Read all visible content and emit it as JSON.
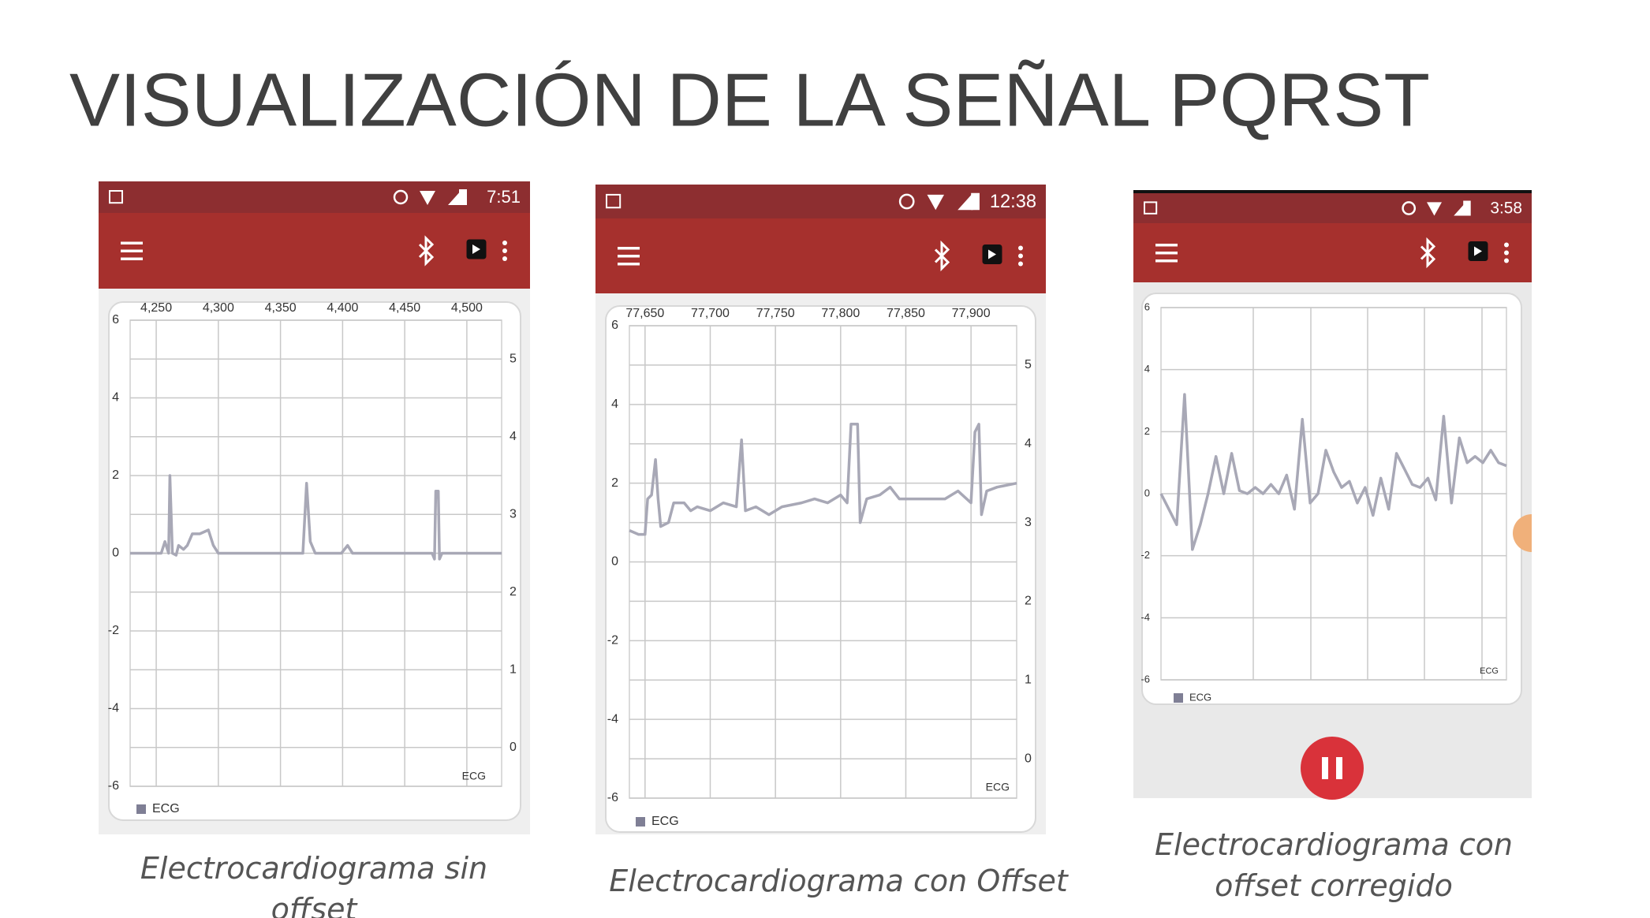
{
  "title": "VISUALIZACIÓN DE LA SEÑAL PQRST",
  "panels": [
    {
      "status_time": "7:51",
      "chart": {
        "type": "line",
        "x": [
          4229,
          4254,
          4257,
          4260,
          4261,
          4263,
          4266,
          4268,
          4272,
          4275,
          4279,
          4285,
          4292,
          4296,
          4300,
          4368,
          4371,
          4374,
          4378,
          4399,
          4404,
          4408,
          4472,
          4474,
          4475,
          4477,
          4478,
          4480,
          4528
        ],
        "series": [
          {
            "name": "ECG",
            "color": "#a8a8b6",
            "values": [
              0,
              0,
              0.3,
              0,
              2.0,
              0,
              -0.05,
              0.2,
              0.1,
              0.2,
              0.5,
              0.5,
              0.6,
              0.2,
              0,
              0,
              1.8,
              0.3,
              0,
              0,
              0.2,
              0,
              0,
              -0.15,
              1.6,
              1.6,
              -0.15,
              0,
              0
            ]
          }
        ],
        "xlim": [
          4229,
          4528
        ],
        "xticks": [
          {
            "value": 4250,
            "label": "4,250"
          },
          {
            "value": 4300,
            "label": "4,300"
          },
          {
            "value": 4350,
            "label": "4,350"
          },
          {
            "value": 4400,
            "label": "4,400"
          },
          {
            "value": 4450,
            "label": "4,450"
          },
          {
            "value": 4500,
            "label": "4,500"
          }
        ],
        "ylim": [
          -6,
          6
        ],
        "yticks": [
          -6,
          -4,
          -2,
          0,
          2,
          4,
          6
        ],
        "y2lim": [
          -0.5,
          5.5
        ],
        "y2ticks": [
          0,
          1,
          2,
          3,
          4,
          5
        ],
        "grid": true
      },
      "caption": "Electrocardiograma sin offset"
    },
    {
      "status_time": "12:38",
      "chart": {
        "type": "line",
        "x": [
          77638,
          77645,
          77650,
          77652,
          77655,
          77658,
          77660,
          77662,
          77668,
          77672,
          77680,
          77685,
          77690,
          77700,
          77710,
          77720,
          77724,
          77727,
          77735,
          77745,
          77755,
          77770,
          77780,
          77790,
          77800,
          77805,
          77808,
          77813,
          77815,
          77820,
          77830,
          77838,
          77845,
          77860,
          77880,
          77890,
          77900,
          77903,
          77906,
          77908,
          77912,
          77920,
          77935
        ],
        "series": [
          {
            "name": "ECG",
            "color": "#a8a8b6",
            "values": [
              0.8,
              0.7,
              0.7,
              1.6,
              1.7,
              2.6,
              1.6,
              0.9,
              1.0,
              1.5,
              1.5,
              1.3,
              1.4,
              1.3,
              1.5,
              1.4,
              3.1,
              1.3,
              1.4,
              1.2,
              1.4,
              1.5,
              1.6,
              1.5,
              1.7,
              1.5,
              3.5,
              3.5,
              1.0,
              1.6,
              1.7,
              1.9,
              1.6,
              1.6,
              1.6,
              1.8,
              1.5,
              3.3,
              3.5,
              1.2,
              1.8,
              1.9,
              2.0
            ]
          }
        ],
        "xlim": [
          77638,
          77935
        ],
        "xticks": [
          {
            "value": 77650,
            "label": "77,650"
          },
          {
            "value": 77700,
            "label": "77,700"
          },
          {
            "value": 77750,
            "label": "77,750"
          },
          {
            "value": 77800,
            "label": "77,800"
          },
          {
            "value": 77850,
            "label": "77,850"
          },
          {
            "value": 77900,
            "label": "77,900"
          }
        ],
        "ylim": [
          -6,
          6
        ],
        "yticks": [
          -6,
          -4,
          -2,
          0,
          2,
          4,
          6
        ],
        "y2lim": [
          -0.5,
          5.5
        ],
        "y2ticks": [
          0,
          1,
          2,
          3,
          4,
          5
        ],
        "grid": true
      },
      "caption": "Electrocardiograma con Offset"
    },
    {
      "status_time": "3:58",
      "chart": {
        "type": "line",
        "series": [
          {
            "name": "ECG",
            "color": "#a8a8b6",
            "values": [
              0,
              -0.5,
              -1,
              3.2,
              -1.8,
              -1,
              0,
              1.2,
              0,
              1.3,
              0.1,
              0,
              0.2,
              0,
              0.3,
              0,
              0.6,
              -0.5,
              2.4,
              -0.3,
              0,
              1.4,
              0.7,
              0.2,
              0.4,
              -0.3,
              0.2,
              -0.7,
              0.5,
              -0.5,
              1.3,
              0.8,
              0.3,
              0.2,
              0.5,
              -0.2,
              2.5,
              -0.3,
              1.8,
              1.0,
              1.2,
              1.0,
              1.4,
              1.0,
              0.9
            ]
          }
        ],
        "ylim": [
          -6,
          6
        ],
        "yticks": [
          -6,
          -4,
          -2,
          0,
          2,
          4,
          6
        ],
        "grid": true
      },
      "caption": "Electrocardiograma con offset corregido"
    }
  ]
}
